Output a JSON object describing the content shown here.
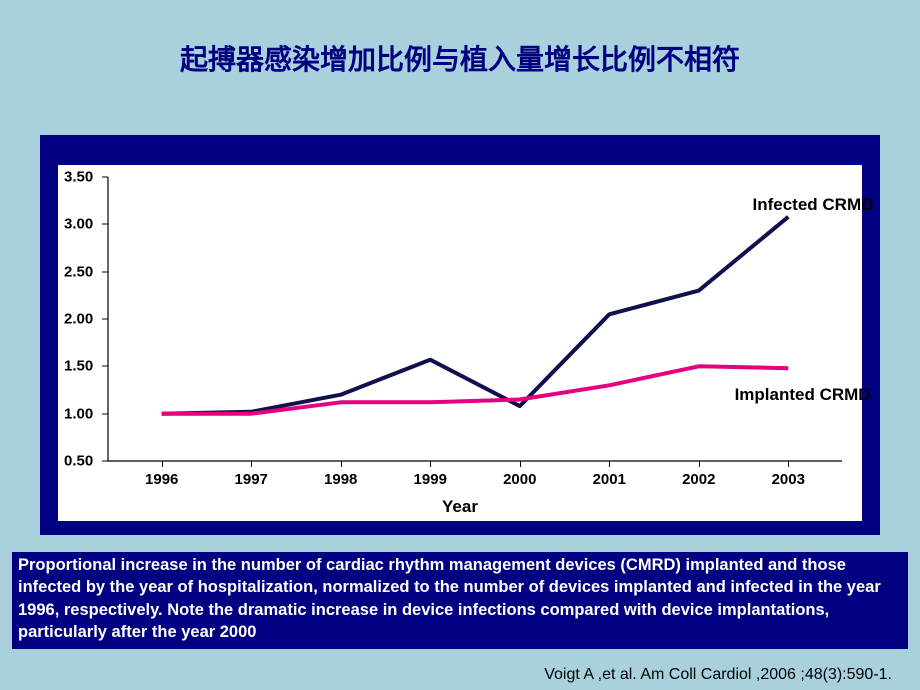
{
  "title": "起搏器感染增加比例与植入量增长比例不相符",
  "chart": {
    "type": "line",
    "background_color": "#ffffff",
    "frame_color": "#000080",
    "x_axis_title": "Year",
    "x_labels": [
      "1996",
      "1997",
      "1998",
      "1999",
      "2000",
      "2001",
      "2002",
      "2003"
    ],
    "x_values": [
      1996,
      1997,
      1998,
      1999,
      2000,
      2001,
      2002,
      2003
    ],
    "y_ticks": [
      0.5,
      1.0,
      1.5,
      2.0,
      2.5,
      3.0,
      3.5
    ],
    "ylim": [
      0.5,
      3.5
    ],
    "xlim": [
      1995.4,
      2003.6
    ],
    "tick_fontsize": 15,
    "axis_title_fontsize": 17,
    "series": [
      {
        "name": "Infected CRMD",
        "color": "#10104d",
        "line_width": 4,
        "x": [
          1996,
          1997,
          1998,
          1999,
          2000,
          2001,
          2002,
          2003
        ],
        "y": [
          1.0,
          1.02,
          1.2,
          1.57,
          1.08,
          2.05,
          2.3,
          3.08
        ],
        "annot_label": "Infected CRMD",
        "annot_pos": {
          "x": 2002.6,
          "y": 3.2
        }
      },
      {
        "name": "Implanted CRMD",
        "color": "#e6007e",
        "line_width": 4,
        "x": [
          1996,
          1997,
          1998,
          1999,
          2000,
          2001,
          2002,
          2003
        ],
        "y": [
          1.0,
          1.0,
          1.12,
          1.12,
          1.15,
          1.3,
          1.5,
          1.48
        ],
        "annot_label": "Implanted CRMD",
        "annot_pos": {
          "x": 2002.4,
          "y": 1.2
        }
      }
    ]
  },
  "caption": " Proportional increase in the number of cardiac rhythm management devices (CMRD) implanted and those infected by the year of hospitalization, normalized to the number of devices implanted and infected in the year 1996, respectively. Note the dramatic increase in device infections compared with device implantations, particularly after the year 2000",
  "citation": "Voigt A ,et al. Am Coll Cardiol ,2006 ;48(3):590-1."
}
